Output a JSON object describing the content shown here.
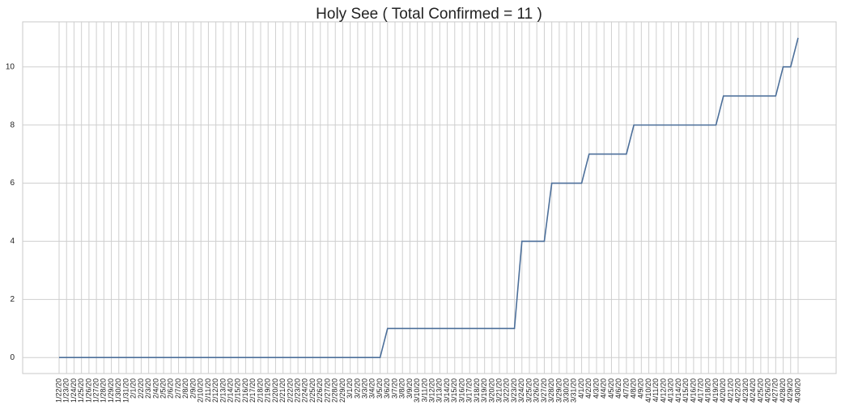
{
  "chart_data": {
    "type": "line",
    "title": "Holy See ( Total Confirmed = 11 )",
    "categories": [
      "1/22/20",
      "1/23/20",
      "1/24/20",
      "1/25/20",
      "1/26/20",
      "1/27/20",
      "1/28/20",
      "1/29/20",
      "1/30/20",
      "1/31/20",
      "2/1/20",
      "2/2/20",
      "2/3/20",
      "2/4/20",
      "2/5/20",
      "2/6/20",
      "2/7/20",
      "2/8/20",
      "2/9/20",
      "2/10/20",
      "2/11/20",
      "2/12/20",
      "2/13/20",
      "2/14/20",
      "2/15/20",
      "2/16/20",
      "2/17/20",
      "2/18/20",
      "2/19/20",
      "2/20/20",
      "2/21/20",
      "2/22/20",
      "2/23/20",
      "2/24/20",
      "2/25/20",
      "2/26/20",
      "2/27/20",
      "2/28/20",
      "2/29/20",
      "3/1/20",
      "3/2/20",
      "3/3/20",
      "3/4/20",
      "3/5/20",
      "3/6/20",
      "3/7/20",
      "3/8/20",
      "3/9/20",
      "3/10/20",
      "3/11/20",
      "3/12/20",
      "3/13/20",
      "3/14/20",
      "3/15/20",
      "3/16/20",
      "3/17/20",
      "3/18/20",
      "3/19/20",
      "3/20/20",
      "3/21/20",
      "3/22/20",
      "3/23/20",
      "3/24/20",
      "3/25/20",
      "3/26/20",
      "3/27/20",
      "3/28/20",
      "3/29/20",
      "3/30/20",
      "3/31/20",
      "4/1/20",
      "4/2/20",
      "4/3/20",
      "4/4/20",
      "4/5/20",
      "4/6/20",
      "4/7/20",
      "4/8/20",
      "4/9/20",
      "4/10/20",
      "4/11/20",
      "4/12/20",
      "4/13/20",
      "4/14/20",
      "4/15/20",
      "4/16/20",
      "4/17/20",
      "4/18/20",
      "4/19/20",
      "4/20/20",
      "4/21/20",
      "4/22/20",
      "4/23/20",
      "4/24/20",
      "4/25/20",
      "4/26/20",
      "4/27/20",
      "4/28/20",
      "4/29/20",
      "4/30/20"
    ],
    "values": [
      0,
      0,
      0,
      0,
      0,
      0,
      0,
      0,
      0,
      0,
      0,
      0,
      0,
      0,
      0,
      0,
      0,
      0,
      0,
      0,
      0,
      0,
      0,
      0,
      0,
      0,
      0,
      0,
      0,
      0,
      0,
      0,
      0,
      0,
      0,
      0,
      0,
      0,
      0,
      0,
      0,
      0,
      0,
      0,
      1,
      1,
      1,
      1,
      1,
      1,
      1,
      1,
      1,
      1,
      1,
      1,
      1,
      1,
      1,
      1,
      1,
      1,
      4,
      4,
      4,
      4,
      6,
      6,
      6,
      6,
      6,
      7,
      7,
      7,
      7,
      7,
      7,
      8,
      8,
      8,
      8,
      8,
      8,
      8,
      8,
      8,
      8,
      8,
      8,
      9,
      9,
      9,
      9,
      9,
      9,
      9,
      9,
      10,
      10,
      11
    ],
    "color": "#4c6f9a",
    "ylim": [
      -0.55,
      11.55
    ],
    "yticks": [
      0,
      2,
      4,
      6,
      8,
      10
    ],
    "grid": true
  }
}
